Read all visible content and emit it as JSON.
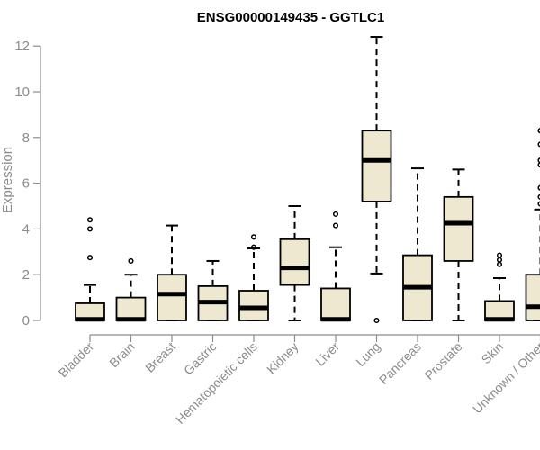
{
  "chart_data": {
    "type": "boxplot",
    "title": "ENSG00000149435 - GGTLC1",
    "xlabel": "",
    "ylabel": "Expression",
    "ylim": [
      0,
      12.5
    ],
    "yticks": [
      0,
      2,
      4,
      6,
      8,
      10,
      12
    ],
    "grid": false,
    "colors": {
      "box_fill": "#efe8d0",
      "box_stroke": "#000000",
      "axis": "#8c8c8c"
    },
    "categories": [
      "Bladder",
      "Brain",
      "Breast",
      "Gastric",
      "Hematopoietic cells",
      "Kidney",
      "Liver",
      "Lung",
      "Pancreas",
      "Prostate",
      "Skin",
      "Unknown / Other"
    ],
    "boxes": [
      {
        "category": "Bladder",
        "whisker_low": 0,
        "q1": 0,
        "median": 0.05,
        "q3": 0.75,
        "whisker_high": 1.55,
        "outliers": [
          2.75,
          4.0,
          4.4
        ]
      },
      {
        "category": "Brain",
        "whisker_low": 0,
        "q1": 0,
        "median": 0.05,
        "q3": 1.0,
        "whisker_high": 2.0,
        "outliers": [
          2.6
        ]
      },
      {
        "category": "Breast",
        "whisker_low": 0,
        "q1": 0,
        "median": 1.15,
        "q3": 2.0,
        "whisker_high": 4.15,
        "outliers": []
      },
      {
        "category": "Gastric",
        "whisker_low": 0,
        "q1": 0,
        "median": 0.8,
        "q3": 1.5,
        "whisker_high": 2.6,
        "outliers": []
      },
      {
        "category": "Hematopoietic cells",
        "whisker_low": 0,
        "q1": 0,
        "median": 0.55,
        "q3": 1.3,
        "whisker_high": 3.15,
        "outliers": [
          3.2,
          3.65
        ]
      },
      {
        "category": "Kidney",
        "whisker_low": 0,
        "q1": 1.55,
        "median": 2.3,
        "q3": 3.55,
        "whisker_high": 5.0,
        "outliers": []
      },
      {
        "category": "Liver",
        "whisker_low": 0,
        "q1": 0,
        "median": 0.05,
        "q3": 1.4,
        "whisker_high": 3.2,
        "outliers": [
          4.15,
          4.65
        ]
      },
      {
        "category": "Lung",
        "whisker_low": 2.05,
        "q1": 5.2,
        "median": 7.0,
        "q3": 8.3,
        "whisker_high": 12.4,
        "outliers": [
          0.0
        ]
      },
      {
        "category": "Pancreas",
        "whisker_low": 0,
        "q1": 0,
        "median": 1.45,
        "q3": 2.85,
        "whisker_high": 6.65,
        "outliers": []
      },
      {
        "category": "Prostate",
        "whisker_low": 0,
        "q1": 2.6,
        "median": 4.25,
        "q3": 5.4,
        "whisker_high": 6.6,
        "outliers": []
      },
      {
        "category": "Skin",
        "whisker_low": 0,
        "q1": 0,
        "median": 0.05,
        "q3": 0.85,
        "whisker_high": 1.85,
        "outliers": [
          2.45,
          2.65,
          2.85
        ]
      },
      {
        "category": "Unknown / Other",
        "whisker_low": 0,
        "q1": 0,
        "median": 0.6,
        "q3": 2.0,
        "whisker_high": 4.85,
        "outliers": [
          5.1,
          5.4,
          5.8,
          6.8,
          7.0,
          7.7,
          8.3
        ]
      }
    ]
  }
}
